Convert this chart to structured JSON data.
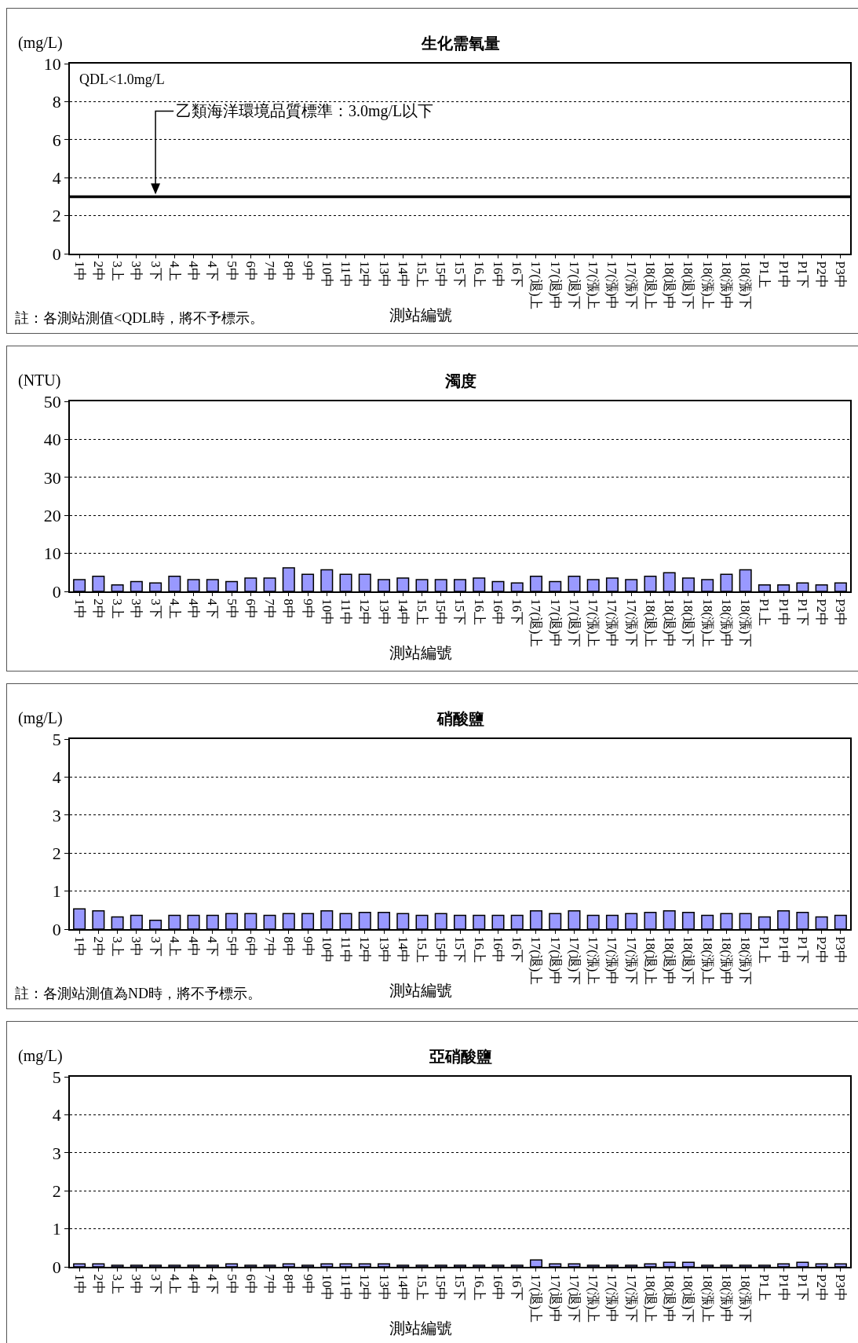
{
  "chart_data": [
    {
      "type": "bar",
      "title": "生化需氧量",
      "ylabel": "(mg/L)",
      "xlabel": "測站編號",
      "categories": [
        "1中",
        "2中",
        "3上",
        "3中",
        "3下",
        "4上",
        "4中",
        "4下",
        "5中",
        "6中",
        "7中",
        "8中",
        "9中",
        "10中",
        "11中",
        "12中",
        "13中",
        "14中",
        "15上",
        "15中",
        "15下",
        "16上",
        "16中",
        "16下",
        "17(退)上",
        "17(退)中",
        "17(退)下",
        "17(漲)上",
        "17(漲)中",
        "17(漲)下",
        "18(退)上",
        "18(退)中",
        "18(退)下",
        "18(漲)上",
        "18(漲)中",
        "18(漲)下",
        "P1上",
        "P1中",
        "P1下",
        "P2中",
        "P3中"
      ],
      "values": [
        null,
        null,
        null,
        null,
        null,
        null,
        null,
        null,
        null,
        null,
        null,
        null,
        null,
        null,
        null,
        null,
        null,
        null,
        null,
        null,
        null,
        null,
        null,
        null,
        null,
        null,
        null,
        null,
        null,
        null,
        null,
        null,
        null,
        null,
        null,
        null,
        null,
        null,
        null,
        null,
        null
      ],
      "color": "#9999ff",
      "ylim": [
        0,
        10
      ],
      "yticks": [
        0,
        2,
        4,
        6,
        8,
        10
      ],
      "grid": "y",
      "ref_lines": [
        {
          "axis": "y",
          "value": 3,
          "label": "乙類海洋環境品質標準：3.0mg/L以下",
          "color": "#000000",
          "line_style": "solid"
        }
      ],
      "annotations": [
        "QDL<1.0mg/L",
        "註：各測站測值<QDL時，將不予標示。"
      ]
    },
    {
      "type": "bar",
      "title": "濁度",
      "ylabel": "(NTU)",
      "xlabel": "測站編號",
      "categories": [
        "1中",
        "2中",
        "3上",
        "3中",
        "3下",
        "4上",
        "4中",
        "4下",
        "5中",
        "6中",
        "7中",
        "8中",
        "9中",
        "10中",
        "11中",
        "12中",
        "13中",
        "14中",
        "15上",
        "15中",
        "15下",
        "16上",
        "16中",
        "16下",
        "17(退)上",
        "17(退)中",
        "17(退)下",
        "17(漲)上",
        "17(漲)中",
        "17(漲)下",
        "18(退)上",
        "18(退)中",
        "18(退)下",
        "18(漲)上",
        "18(漲)中",
        "18(漲)下",
        "P1上",
        "P1中",
        "P1下",
        "P2中",
        "P3中"
      ],
      "values": [
        3.1,
        4.0,
        1.7,
        2.6,
        2.2,
        4.0,
        3.1,
        3.1,
        2.6,
        3.5,
        3.5,
        6.2,
        4.5,
        5.7,
        4.5,
        4.5,
        3.1,
        3.5,
        3.1,
        3.1,
        3.1,
        3.5,
        2.6,
        2.2,
        4.0,
        2.6,
        4.0,
        3.1,
        3.5,
        3.1,
        4.0,
        4.9,
        3.5,
        3.1,
        4.5,
        5.7,
        1.7,
        1.7,
        2.2,
        1.7,
        2.2
      ],
      "color": "#9999ff",
      "ylim": [
        0,
        50
      ],
      "yticks": [
        0,
        10,
        20,
        30,
        40,
        50
      ],
      "grid": "y"
    },
    {
      "type": "bar",
      "title": "硝酸鹽",
      "ylabel": "(mg/L)",
      "xlabel": "測站編號",
      "categories": [
        "1中",
        "2中",
        "3上",
        "3中",
        "3下",
        "4上",
        "4中",
        "4下",
        "5中",
        "6中",
        "7中",
        "8中",
        "9中",
        "10中",
        "11中",
        "12中",
        "13中",
        "14中",
        "15上",
        "15中",
        "15下",
        "16上",
        "16中",
        "16下",
        "17(退)上",
        "17(退)中",
        "17(退)下",
        "17(漲)上",
        "17(漲)中",
        "17(漲)下",
        "18(退)上",
        "18(退)中",
        "18(退)下",
        "18(漲)上",
        "18(漲)中",
        "18(漲)下",
        "P1上",
        "P1中",
        "P1下",
        "P2中",
        "P3中"
      ],
      "values": [
        0.53,
        0.48,
        0.32,
        0.36,
        0.23,
        0.36,
        0.36,
        0.36,
        0.41,
        0.41,
        0.36,
        0.41,
        0.41,
        0.48,
        0.41,
        0.44,
        0.44,
        0.41,
        0.36,
        0.41,
        0.36,
        0.36,
        0.36,
        0.36,
        0.48,
        0.41,
        0.48,
        0.36,
        0.36,
        0.41,
        0.44,
        0.48,
        0.44,
        0.36,
        0.41,
        0.41,
        0.32,
        0.48,
        0.44,
        0.32,
        0.36
      ],
      "color": "#9999ff",
      "ylim": [
        0,
        5
      ],
      "yticks": [
        0,
        1,
        2,
        3,
        4,
        5
      ],
      "grid": "y",
      "annotations": [
        "註：各測站測值為ND時，將不予標示。"
      ]
    },
    {
      "type": "bar",
      "title": "亞硝酸鹽",
      "ylabel": "(mg/L)",
      "xlabel": "測站編號",
      "categories": [
        "1中",
        "2中",
        "3上",
        "3中",
        "3下",
        "4上",
        "4中",
        "4下",
        "5中",
        "6中",
        "7中",
        "8中",
        "9中",
        "10中",
        "11中",
        "12中",
        "13中",
        "14中",
        "15上",
        "15中",
        "15下",
        "16上",
        "16中",
        "16下",
        "17(退)上",
        "17(退)中",
        "17(退)下",
        "17(漲)上",
        "17(漲)中",
        "17(漲)下",
        "18(退)上",
        "18(退)中",
        "18(退)下",
        "18(漲)上",
        "18(漲)中",
        "18(漲)下",
        "P1上",
        "P1中",
        "P1下",
        "P2中",
        "P3中"
      ],
      "values": [
        0.08,
        0.08,
        0.04,
        0.04,
        0.04,
        0.04,
        0.04,
        0.04,
        0.08,
        0.04,
        0.04,
        0.08,
        0.04,
        0.08,
        0.08,
        0.08,
        0.08,
        0.04,
        0.04,
        0.04,
        0.04,
        0.04,
        0.04,
        0.04,
        0.18,
        0.08,
        0.08,
        0.04,
        0.04,
        0.04,
        0.08,
        0.12,
        0.12,
        0.04,
        0.04,
        0.04,
        0.04,
        0.08,
        0.12,
        0.08,
        0.08
      ],
      "color": "#9999ff",
      "ylim": [
        0,
        5
      ],
      "yticks": [
        0,
        1,
        2,
        3,
        4,
        5
      ],
      "grid": "y"
    }
  ]
}
